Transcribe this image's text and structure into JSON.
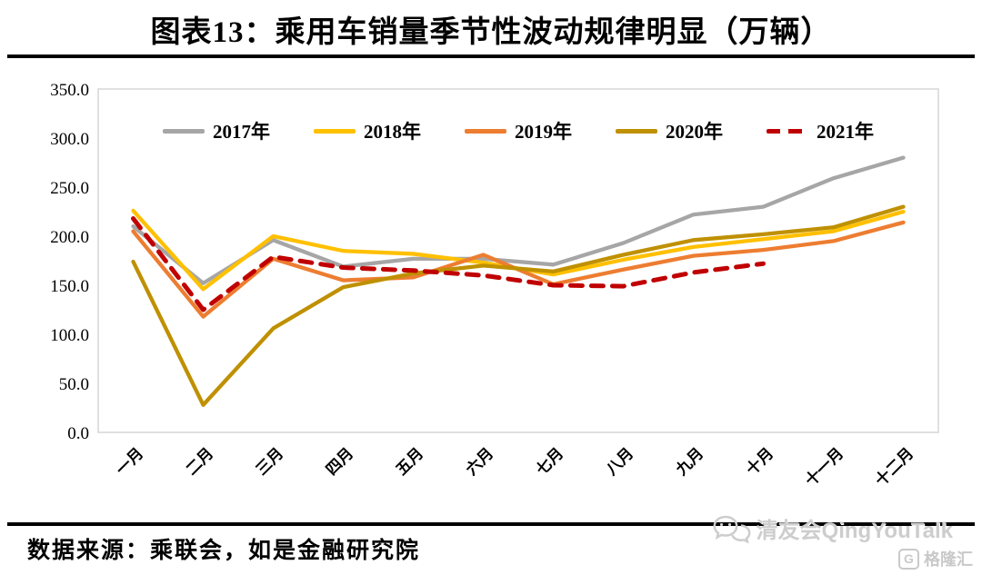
{
  "title": "图表13：乘用车销量季节性波动规律明显（万辆）",
  "source_note": "数据来源：乘联会，如是金融研究院",
  "watermark": {
    "text": "清友会QingYouTalk"
  },
  "brand_logo": {
    "icon_letter": "G",
    "text": "格隆汇"
  },
  "chart_data": {
    "type": "line",
    "title": "图表13：乘用车销量季节性波动规律明显（万辆）",
    "unit": "万辆",
    "xlabel": "",
    "ylabel": "",
    "grid": false,
    "legend_position": "top",
    "categories": [
      "一月",
      "二月",
      "三月",
      "四月",
      "五月",
      "六月",
      "七月",
      "八月",
      "九月",
      "十月",
      "十一月",
      "十二月"
    ],
    "y_axis": {
      "min": 0,
      "max": 350,
      "step": 50,
      "tick_labels": [
        "0.0",
        "50.0",
        "100.0",
        "150.0",
        "200.0",
        "250.0",
        "300.0",
        "350.0"
      ]
    },
    "series": [
      {
        "name": "2017年",
        "color": "#a6a6a6",
        "style": "solid",
        "values": [
          210,
          152,
          196,
          169,
          177,
          177,
          171,
          193,
          222,
          230,
          259,
          280
        ]
      },
      {
        "name": "2018年",
        "color": "#ffc000",
        "style": "solid",
        "values": [
          226,
          146,
          200,
          185,
          182,
          173,
          161,
          176,
          189,
          197,
          205,
          225
        ]
      },
      {
        "name": "2019年",
        "color": "#ed7d31",
        "style": "solid",
        "values": [
          205,
          118,
          177,
          155,
          158,
          181,
          151,
          166,
          180,
          186,
          195,
          214
        ]
      },
      {
        "name": "2020年",
        "color": "#bf9000",
        "style": "solid",
        "values": [
          174,
          28,
          106,
          148,
          162,
          170,
          164,
          181,
          196,
          202,
          209,
          230
        ]
      },
      {
        "name": "2021年",
        "color": "#c00000",
        "style": "dashed",
        "values": [
          218,
          125,
          179,
          168,
          165,
          160,
          150,
          149,
          163,
          172,
          null,
          null
        ]
      }
    ]
  }
}
